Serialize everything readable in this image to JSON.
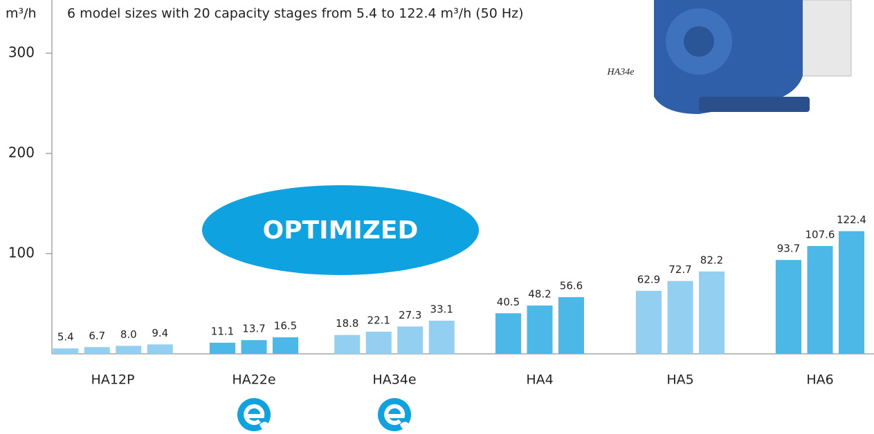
{
  "chart_data": {
    "type": "bar",
    "y_label": "m³/h",
    "subtitle": "6 model sizes with 20 capacity stages from 5.4 to 122.4 m³/h (50 Hz)",
    "annotation": "OPTIMIZED",
    "image_caption": "HA34e",
    "ylim": [
      0,
      350
    ],
    "yticks": [
      100,
      200,
      300
    ],
    "groups": [
      {
        "name": "HA12P",
        "color": "#93cff0",
        "values": [
          5.4,
          6.7,
          8.0,
          9.4
        ],
        "value_labels": [
          "5.4",
          "6.7",
          "8.0",
          "9.4"
        ]
      },
      {
        "name": "HA22e",
        "color": "#4cb8e8",
        "values": [
          11.1,
          13.7,
          16.5
        ]
      },
      {
        "name": "HA34e",
        "color": "#93cff0",
        "values": [
          18.8,
          22.1,
          27.3,
          33.1
        ]
      },
      {
        "name": "HA4",
        "color": "#4cb8e8",
        "values": [
          40.5,
          48.2,
          56.6
        ]
      },
      {
        "name": "HA5",
        "color": "#93cff0",
        "values": [
          62.9,
          72.7,
          82.2
        ]
      },
      {
        "name": "HA6",
        "color": "#4cb8e8",
        "values": [
          93.7,
          107.6,
          122.4
        ]
      }
    ]
  }
}
